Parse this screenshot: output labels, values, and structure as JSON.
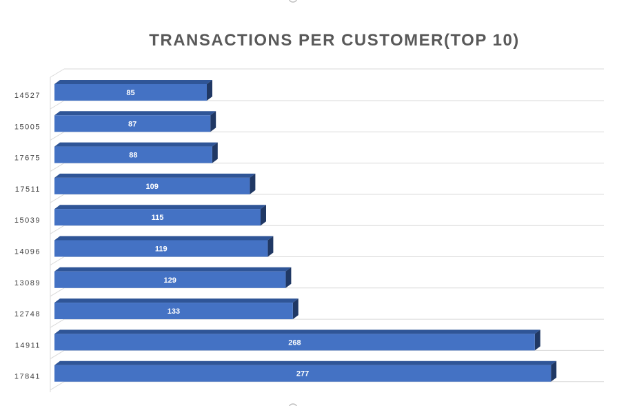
{
  "chart_data": {
    "type": "bar",
    "orientation": "horizontal",
    "style": "3d",
    "title": "TRANSACTIONS PER CUSTOMER(TOP 10)",
    "categories": [
      "14527",
      "15005",
      "17675",
      "17511",
      "15039",
      "14096",
      "13089",
      "12748",
      "14911",
      "17841"
    ],
    "values": [
      85,
      87,
      88,
      109,
      115,
      119,
      129,
      133,
      268,
      277
    ],
    "data_labels": [
      "85",
      "87",
      "88",
      "109",
      "115",
      "119",
      "129",
      "133",
      "268",
      "277"
    ],
    "xlim": [
      0,
      300
    ],
    "x_axis_visible": false,
    "grid": true,
    "legend": "none",
    "colors": {
      "bar_front": "#4472C4",
      "bar_top": "#2F5597",
      "bar_side": "#203864",
      "grid": "#D9D9D9",
      "label": "#FFFFFF",
      "title": "#595959"
    }
  }
}
